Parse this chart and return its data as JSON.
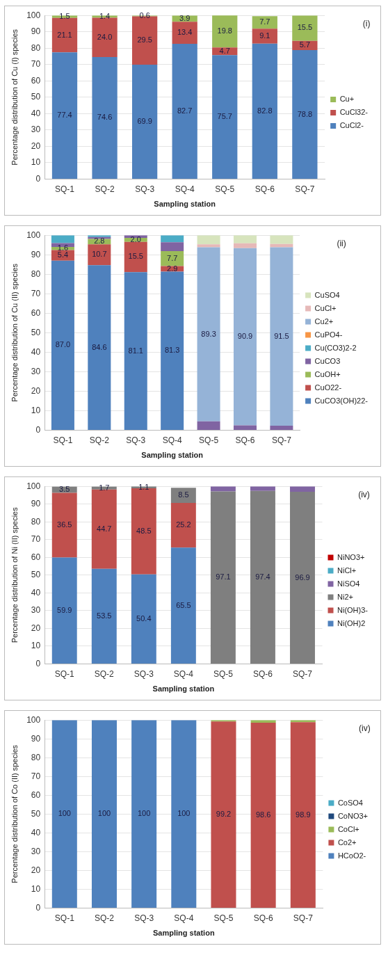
{
  "chart_data": [
    {
      "type": "bar",
      "stacked": true,
      "categories": [
        "SQ-1",
        "SQ-2",
        "SQ-3",
        "SQ-4",
        "SQ-5",
        "SQ-6",
        "SQ-7"
      ],
      "xlabel": "Sampling station",
      "ylabel": "Percentage distribution of Cu (I) species",
      "ylim": [
        0,
        100
      ],
      "yticks": [
        0,
        10,
        20,
        30,
        40,
        50,
        60,
        70,
        80,
        90,
        100
      ],
      "grid": "y",
      "legend": "right",
      "annotations": [
        "(i)"
      ],
      "series": [
        {
          "name": "CuCl2-",
          "color": "#4f81bd",
          "values": [
            77.4,
            74.6,
            69.9,
            82.7,
            75.7,
            82.8,
            78.8
          ],
          "value_labels": [
            "77.4",
            "74.6",
            "69.9",
            "82.7",
            "75.7",
            "82.8",
            "78.8"
          ]
        },
        {
          "name": "CuCl32-",
          "color": "#c0504d",
          "values": [
            21.1,
            24.0,
            29.5,
            13.4,
            4.7,
            9.1,
            5.7
          ],
          "value_labels": [
            "21.1",
            "24.0",
            "29.5",
            "13.4",
            "4.7",
            "9.1",
            "5.7"
          ]
        },
        {
          "name": "Cu+",
          "color": "#9bbb59",
          "values": [
            1.5,
            1.4,
            0.6,
            3.9,
            19.8,
            7.7,
            15.5
          ],
          "value_labels": [
            "1.5",
            "1.4",
            "0.6",
            "3.9",
            "19.8",
            "7.7",
            "15.5"
          ]
        }
      ]
    },
    {
      "type": "bar",
      "stacked": true,
      "categories": [
        "SQ-1",
        "SQ-2",
        "SQ-3",
        "SQ-4",
        "SQ-5",
        "SQ-6",
        "SQ-7"
      ],
      "xlabel": "Sampling station",
      "ylabel": "Percentage distribution of Cu (II) species",
      "ylim": [
        0,
        100
      ],
      "yticks": [
        0,
        10,
        20,
        30,
        40,
        50,
        60,
        70,
        80,
        90,
        100
      ],
      "grid": "y",
      "legend": "right",
      "annotations": [
        "(ii)"
      ],
      "series": [
        {
          "name": "CuCO3(OH)22-",
          "color": "#4f81bd",
          "values": [
            87.0,
            84.6,
            81.1,
            81.3,
            0,
            0,
            0
          ],
          "value_labels": [
            "87.0",
            "84.6",
            "81.1",
            "81.3",
            null,
            null,
            null
          ]
        },
        {
          "name": "CuO22-",
          "color": "#c0504d",
          "values": [
            5.4,
            10.7,
            15.5,
            2.9,
            0,
            0,
            0
          ],
          "value_labels": [
            "5.4",
            "10.7",
            "15.5",
            "2.9",
            null,
            null,
            null
          ]
        },
        {
          "name": "CuOH+",
          "color": "#9bbb59",
          "values": [
            1.6,
            2.8,
            2.0,
            7.7,
            0,
            0,
            0
          ],
          "value_labels": [
            "1.6",
            "2.8",
            "2.0",
            "7.7",
            null,
            null,
            null
          ]
        },
        {
          "name": "CuCO3",
          "color": "#8064a2",
          "values": [
            2.0,
            1.0,
            1.4,
            4.5,
            4.5,
            2.5,
            2.3
          ]
        },
        {
          "name": "Cu(CO3)2-2",
          "color": "#4bacc6",
          "values": [
            4.0,
            0.9,
            0,
            3.6,
            0,
            0,
            0
          ]
        },
        {
          "name": "CuPO4-",
          "color": "#f79646",
          "values": [
            0,
            0,
            0,
            0,
            0,
            0,
            0
          ]
        },
        {
          "name": "Cu2+",
          "color": "#95b3d7",
          "values": [
            0,
            0,
            0,
            0,
            89.3,
            90.9,
            91.5
          ],
          "value_labels": [
            null,
            null,
            null,
            null,
            "89.3",
            "90.9",
            "91.5"
          ]
        },
        {
          "name": "CuCl+",
          "color": "#e6b9b8",
          "values": [
            0,
            0,
            0,
            0,
            1.5,
            2.5,
            1.7
          ]
        },
        {
          "name": "CuSO4",
          "color": "#d7e4bd",
          "values": [
            0,
            0,
            0,
            0,
            4.7,
            4.1,
            4.5
          ]
        }
      ]
    },
    {
      "type": "bar",
      "stacked": true,
      "categories": [
        "SQ-1",
        "SQ-2",
        "SQ-3",
        "SQ-4",
        "SQ-5",
        "SQ-6",
        "SQ-7"
      ],
      "xlabel": "Sampling station",
      "ylabel": "Percentage distribution of Ni (II) species",
      "ylim": [
        0,
        100
      ],
      "yticks": [
        0,
        10,
        20,
        30,
        40,
        50,
        60,
        70,
        80,
        90,
        100
      ],
      "grid": "y",
      "legend": "right",
      "annotations": [
        "(iv)"
      ],
      "series": [
        {
          "name": "Ni(OH)2",
          "color": "#4f81bd",
          "values": [
            59.9,
            53.5,
            50.4,
            65.5,
            0,
            0,
            0
          ],
          "value_labels": [
            "59.9",
            "53.5",
            "50.4",
            "65.5",
            null,
            null,
            null
          ]
        },
        {
          "name": "Ni(OH)3-",
          "color": "#c0504d",
          "values": [
            36.5,
            44.7,
            48.5,
            25.2,
            0,
            0,
            0
          ],
          "value_labels": [
            "36.5",
            "44.7",
            "48.5",
            "25.2",
            null,
            null,
            null
          ]
        },
        {
          "name": "Ni2+",
          "color": "#7f7f7f",
          "values": [
            3.5,
            1.7,
            1.1,
            8.5,
            97.1,
            97.4,
            96.9
          ],
          "value_labels": [
            "3.5",
            "1.7",
            "1.1",
            "8.5",
            "97.1",
            "97.4",
            "96.9"
          ]
        },
        {
          "name": "NiSO4",
          "color": "#8064a2",
          "values": [
            0,
            0,
            0,
            0,
            2.9,
            2.6,
            3.1
          ]
        },
        {
          "name": "NiCl+",
          "color": "#4bacc6",
          "values": [
            0,
            0,
            0,
            0,
            0,
            0,
            0
          ]
        },
        {
          "name": "NiNO3+",
          "color": "#c00000",
          "values": [
            0,
            0,
            0,
            0,
            0,
            0,
            0
          ]
        }
      ]
    },
    {
      "type": "bar",
      "stacked": true,
      "categories": [
        "SQ-1",
        "SQ-2",
        "SQ-3",
        "SQ-4",
        "SQ-5",
        "SQ-6",
        "SQ-7"
      ],
      "xlabel": "Sampling station",
      "ylabel": "Percentage distribution of Co (II) species",
      "ylim": [
        0,
        100
      ],
      "yticks": [
        0,
        10,
        20,
        30,
        40,
        50,
        60,
        70,
        80,
        90,
        100
      ],
      "grid": "y",
      "legend": "right",
      "annotations": [
        "(iv)"
      ],
      "series": [
        {
          "name": "HCoO2-",
          "color": "#4f81bd",
          "values": [
            100,
            100,
            100,
            100,
            0,
            0,
            0
          ],
          "value_labels": [
            "100",
            "100",
            "100",
            "100",
            null,
            null,
            null
          ]
        },
        {
          "name": "Co2+",
          "color": "#c0504d",
          "values": [
            0,
            0,
            0,
            0,
            99.2,
            98.6,
            98.9
          ],
          "value_labels": [
            null,
            null,
            null,
            null,
            "99.2",
            "98.6",
            "98.9"
          ]
        },
        {
          "name": "CoCl+",
          "color": "#9bbb59",
          "values": [
            0,
            0,
            0,
            0,
            0.8,
            1.4,
            1.1
          ]
        },
        {
          "name": "CoNO3+",
          "color": "#1f497d",
          "values": [
            0,
            0,
            0,
            0,
            0,
            0,
            0
          ]
        },
        {
          "name": "CoSO4",
          "color": "#4bacc6",
          "values": [
            0,
            0,
            0,
            0,
            0,
            0,
            0
          ]
        }
      ]
    }
  ]
}
